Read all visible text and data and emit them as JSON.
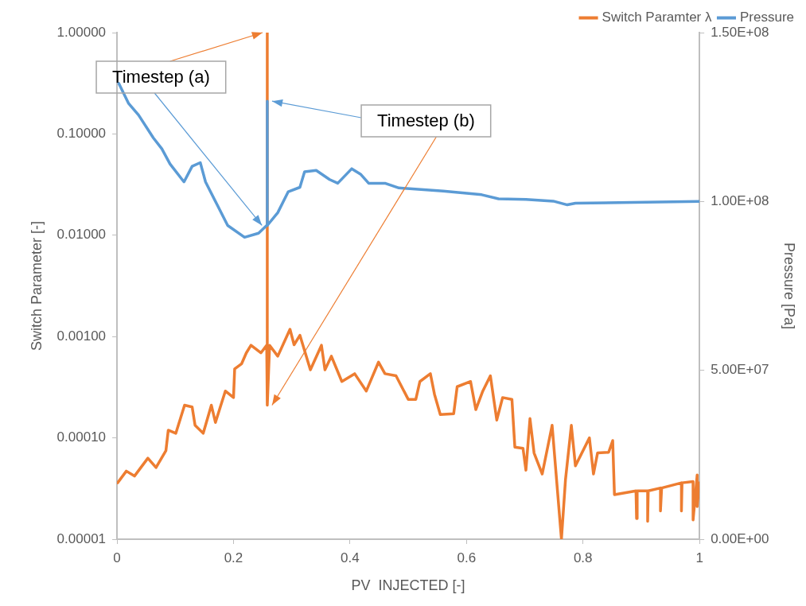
{
  "chart_data": {
    "type": "line",
    "xlabel": "PV  INJECTED [-]",
    "ylabel": "Switch Parameter [-]",
    "y2label": "Pressure [Pa]",
    "xlim": [
      0,
      1
    ],
    "xticks": [
      0,
      0.2,
      0.4,
      0.6,
      0.8,
      1
    ],
    "log": "y",
    "ylim": [
      1e-05,
      1
    ],
    "yticks": [
      {
        "value": 1e-05,
        "label": "0.00001"
      },
      {
        "value": 0.0001,
        "label": "0.00010"
      },
      {
        "value": 0.001,
        "label": "0.00100"
      },
      {
        "value": 0.01,
        "label": "0.01000"
      },
      {
        "value": 0.1,
        "label": "0.10000"
      },
      {
        "value": 1,
        "label": "1.00000"
      }
    ],
    "y2lim": [
      0,
      150000000
    ],
    "y2ticks": [
      {
        "value": 0,
        "label": "0.00E+00"
      },
      {
        "value": 50000000,
        "label": "5.00E+07"
      },
      {
        "value": 100000000,
        "label": "1.00E+08"
      },
      {
        "value": 150000000,
        "label": "1.50E+08"
      }
    ],
    "grid": false,
    "legend": "top right",
    "marker": "none",
    "line_style": "solid",
    "annotations": [
      {
        "text": "Timestep (a)",
        "x": 0.258,
        "y": 1
      },
      {
        "text": "Timestep (b)",
        "x": 0.258,
        "y": 0.00021
      }
    ],
    "series": [
      {
        "name": "Switch Paramter λ",
        "color": "#ed7d31",
        "x": [
          0.001,
          0.016,
          0.03,
          0.053,
          0.067,
          0.084,
          0.088,
          0.101,
          0.116,
          0.129,
          0.134,
          0.148,
          0.162,
          0.169,
          0.186,
          0.2,
          0.202,
          0.214,
          0.222,
          0.23,
          0.247,
          0.257,
          0.258,
          0.258,
          0.262,
          0.276,
          0.297,
          0.304,
          0.314,
          0.332,
          0.351,
          0.357,
          0.368,
          0.386,
          0.408,
          0.428,
          0.449,
          0.46,
          0.479,
          0.5,
          0.513,
          0.52,
          0.538,
          0.545,
          0.555,
          0.578,
          0.584,
          0.607,
          0.616,
          0.628,
          0.641,
          0.652,
          0.662,
          0.678,
          0.683,
          0.697,
          0.702,
          0.709,
          0.716,
          0.73,
          0.747,
          0.763,
          0.77,
          0.78,
          0.787,
          0.811,
          0.818,
          0.825,
          0.844,
          0.851,
          0.854,
          0.891,
          0.892,
          0.893,
          0.911,
          0.911,
          0.912,
          0.933,
          0.933,
          0.935,
          0.969,
          0.969,
          0.97,
          0.989,
          0.989,
          0.996,
          0.996,
          1.0
        ],
        "values": [
          3.6e-05,
          4.7e-05,
          4.2e-05,
          6.3e-05,
          5.1e-05,
          7.5e-05,
          0.000119,
          0.000111,
          0.00021,
          0.000202,
          0.000133,
          0.000111,
          0.00021,
          0.000142,
          0.00029,
          0.00025,
          0.00048,
          0.00054,
          0.00069,
          0.00082,
          0.00069,
          0.00082,
          1,
          0.00021,
          0.00082,
          0.00064,
          0.00118,
          0.00083,
          0.00103,
          0.00047,
          0.00082,
          0.00047,
          0.00064,
          0.00036,
          0.00043,
          0.00029,
          0.00056,
          0.00043,
          0.00041,
          0.00024,
          0.00024,
          0.00036,
          0.00043,
          0.00027,
          0.00017,
          0.000173,
          0.00032,
          0.00036,
          0.00019,
          0.00029,
          0.00041,
          0.00015,
          0.00025,
          0.00024,
          8.1e-05,
          7.9e-05,
          4.8e-05,
          0.000155,
          7.1e-05,
          4.4e-05,
          0.000133,
          1e-05,
          3.9e-05,
          0.000133,
          5.3e-05,
          0.0001,
          4.4e-05,
          7.1e-05,
          7.2e-05,
          9.4e-05,
          2.75e-05,
          3e-05,
          1.6e-05,
          3e-05,
          3e-05,
          1.5e-05,
          3e-05,
          3.2e-05,
          1.9e-05,
          3.2e-05,
          3.6e-05,
          1.9e-05,
          3.6e-05,
          3.7e-05,
          1.55e-05,
          4.3e-05,
          2.1e-05,
          3.6e-05
        ]
      },
      {
        "name": "Pressure",
        "color": "#5b9bd5",
        "axis": "y2",
        "x": [
          0.003,
          0.02,
          0.037,
          0.0625,
          0.077,
          0.091,
          0.115,
          0.129,
          0.143,
          0.152,
          0.172,
          0.19,
          0.219,
          0.243,
          0.257,
          0.258,
          0.258,
          0.276,
          0.294,
          0.314,
          0.322,
          0.342,
          0.365,
          0.379,
          0.403,
          0.418,
          0.432,
          0.46,
          0.484,
          0.56,
          0.626,
          0.655,
          0.702,
          0.749,
          0.773,
          0.787,
          1.0
        ],
        "values": [
          135000000,
          129000000,
          125600000,
          118800000,
          115600000,
          111100000,
          105800000,
          110400000,
          111500000,
          105800000,
          99000000,
          92900000,
          89400000,
          90600000,
          92900000,
          129700000,
          92900000,
          96700000,
          102900000,
          104200000,
          108800000,
          109200000,
          106500000,
          105400000,
          109700000,
          108100000,
          105400000,
          105400000,
          104000000,
          103100000,
          102000000,
          100800000,
          100600000,
          100100000,
          99000000,
          99500000,
          100000000
        ]
      }
    ]
  }
}
